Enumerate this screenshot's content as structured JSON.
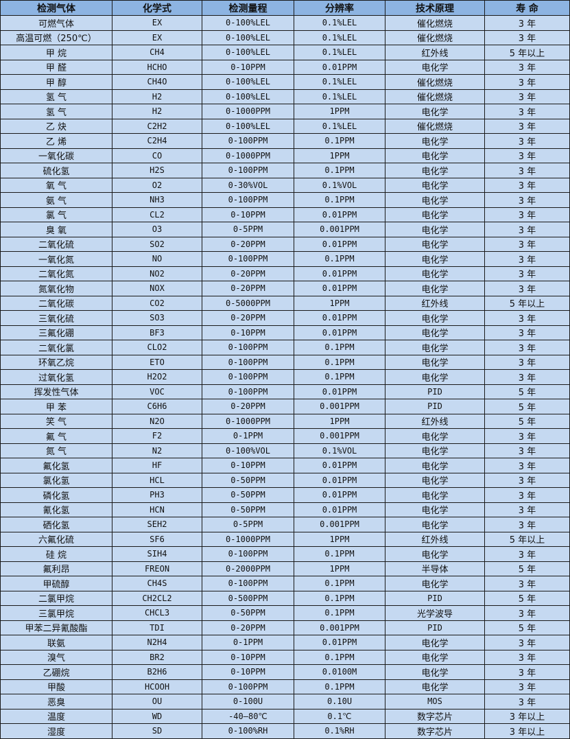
{
  "table": {
    "headers": [
      "检测气体",
      "化学式",
      "检测量程",
      "分辨率",
      "技术原理",
      "寿 命"
    ],
    "rows": [
      [
        "可燃气体",
        "EX",
        "0-100%LEL",
        "0.1%LEL",
        "催化燃烧",
        "3 年"
      ],
      [
        "高温可燃（250℃）",
        "EX",
        "0-100%LEL",
        "0.1%LEL",
        "催化燃烧",
        "3 年"
      ],
      [
        "甲 烷",
        "CH4",
        "0-100%LEL",
        "0.1%LEL",
        "红外线",
        "5 年以上"
      ],
      [
        "甲 醛",
        "HCHO",
        "0-10PPM",
        "0.01PPM",
        "电化学",
        "3 年"
      ],
      [
        "甲 醇",
        "CH4O",
        "0-100%LEL",
        "0.1%LEL",
        "催化燃烧",
        "3 年"
      ],
      [
        "氢 气",
        "H2",
        "0-100%LEL",
        "0.1%LEL",
        "催化燃烧",
        "3 年"
      ],
      [
        "氢 气",
        "H2",
        "0-1000PPM",
        "1PPM",
        "电化学",
        "3 年"
      ],
      [
        "乙 炔",
        "C2H2",
        "0-100%LEL",
        "0.1%LEL",
        "催化燃烧",
        "3 年"
      ],
      [
        "乙 烯",
        "C2H4",
        "0-100PPM",
        "0.1PPM",
        "电化学",
        "3 年"
      ],
      [
        "一氧化碳",
        "CO",
        "0-1000PPM",
        "1PPM",
        "电化学",
        "3 年"
      ],
      [
        "硫化氢",
        "H2S",
        "0-100PPM",
        "0.1PPM",
        "电化学",
        "3 年"
      ],
      [
        "氧 气",
        "O2",
        "0-30%VOL",
        "0.1%VOL",
        "电化学",
        "3 年"
      ],
      [
        "氨 气",
        "NH3",
        "0-100PPM",
        "0.1PPM",
        "电化学",
        "3 年"
      ],
      [
        "氯 气",
        "CL2",
        "0-10PPM",
        "0.01PPM",
        "电化学",
        "3 年"
      ],
      [
        "臭 氧",
        "O3",
        "0-5PPM",
        "0.001PPM",
        "电化学",
        "3 年"
      ],
      [
        "二氧化硫",
        "SO2",
        "0-20PPM",
        "0.01PPM",
        "电化学",
        "3 年"
      ],
      [
        "一氧化氮",
        "NO",
        "0-100PPM",
        "0.1PPM",
        "电化学",
        "3 年"
      ],
      [
        "二氧化氮",
        "NO2",
        "0-20PPM",
        "0.01PPM",
        "电化学",
        "3 年"
      ],
      [
        "氮氧化物",
        "NOX",
        "0-20PPM",
        "0.01PPM",
        "电化学",
        "3 年"
      ],
      [
        "二氧化碳",
        "CO2",
        "0-5000PPM",
        "1PPM",
        "红外线",
        "5 年以上"
      ],
      [
        "三氧化硫",
        "SO3",
        "0-20PPM",
        "0.01PPM",
        "电化学",
        "3 年"
      ],
      [
        "三氟化硼",
        "BF3",
        "0-10PPM",
        "0.01PPM",
        "电化学",
        "3 年"
      ],
      [
        "二氧化氯",
        "CLO2",
        "0-100PPM",
        "0.1PPM",
        "电化学",
        "3 年"
      ],
      [
        "环氧乙烷",
        "ETO",
        "0-100PPM",
        "0.1PPM",
        "电化学",
        "3 年"
      ],
      [
        "过氧化氢",
        "H2O2",
        "0-100PPM",
        "0.1PPM",
        "电化学",
        "3 年"
      ],
      [
        "挥发性气体",
        "VOC",
        "0-100PPM",
        "0.01PPM",
        "PID",
        "5 年"
      ],
      [
        "甲 苯",
        "C6H6",
        "0-20PPM",
        "0.001PPM",
        "PID",
        "5 年"
      ],
      [
        "笑 气",
        "N2O",
        "0-1000PPM",
        "1PPM",
        "红外线",
        "5 年"
      ],
      [
        "氟 气",
        "F2",
        "0-1PPM",
        "0.001PPM",
        "电化学",
        "3 年"
      ],
      [
        "氮 气",
        "N2",
        "0-100%VOL",
        "0.1%VOL",
        "电化学",
        "3 年"
      ],
      [
        "氟化氢",
        "HF",
        "0-10PPM",
        "0.01PPM",
        "电化学",
        "3 年"
      ],
      [
        "氯化氢",
        "HCL",
        "0-50PPM",
        "0.01PPM",
        "电化学",
        "3 年"
      ],
      [
        "磷化氢",
        "PH3",
        "0-50PPM",
        "0.01PPM",
        "电化学",
        "3 年"
      ],
      [
        "氰化氢",
        "HCN",
        "0-50PPM",
        "0.01PPM",
        "电化学",
        "3 年"
      ],
      [
        "硒化氢",
        "SEH2",
        "0-5PPM",
        "0.001PPM",
        "电化学",
        "3 年"
      ],
      [
        "六氟化硫",
        "SF6",
        "0-1000PPM",
        "1PPM",
        "红外线",
        "5 年以上"
      ],
      [
        "硅 烷",
        "SIH4",
        "0-100PPM",
        "0.1PPM",
        "电化学",
        "3 年"
      ],
      [
        "氟利昂",
        "FREON",
        "0-2000PPM",
        "1PPM",
        "半导体",
        "5 年"
      ],
      [
        "甲硫醇",
        "CH4S",
        "0-100PPM",
        "0.1PPM",
        "电化学",
        "3 年"
      ],
      [
        "二氯甲烷",
        "CH2CL2",
        "0-500PPM",
        "0.1PPM",
        "PID",
        "5 年"
      ],
      [
        "三氯甲烷",
        "CHCL3",
        "0-50PPM",
        "0.1PPM",
        "光学波导",
        "3 年"
      ],
      [
        "甲苯二异氰酸酯",
        "TDI",
        "0-20PPM",
        "0.001PPM",
        "PID",
        "5 年"
      ],
      [
        "联氨",
        "N2H4",
        "0-1PPM",
        "0.01PPM",
        "电化学",
        "3 年"
      ],
      [
        "溴气",
        "BR2",
        "0-10PPM",
        "0.1PPM",
        "电化学",
        "3 年"
      ],
      [
        "乙硼烷",
        "B2H6",
        "0-10PPM",
        "0.0100M",
        "电化学",
        "3 年"
      ],
      [
        "甲酸",
        "HCOOH",
        "0-100PPM",
        "0.1PPM",
        "电化学",
        "3 年"
      ],
      [
        "恶臭",
        "OU",
        "0-100U",
        "0.10U",
        "MOS",
        "3 年"
      ],
      [
        "温度",
        "WD",
        "-40—80℃",
        "0.1℃",
        "数字芯片",
        "3 年以上"
      ],
      [
        "湿度",
        "SD",
        "0-100%RH",
        "0.1%RH",
        "数字芯片",
        "3 年以上"
      ]
    ]
  },
  "colors": {
    "header_bg": "#8db4e2",
    "row_bg": "#c5d9f1",
    "border": "#1a1a1a"
  }
}
